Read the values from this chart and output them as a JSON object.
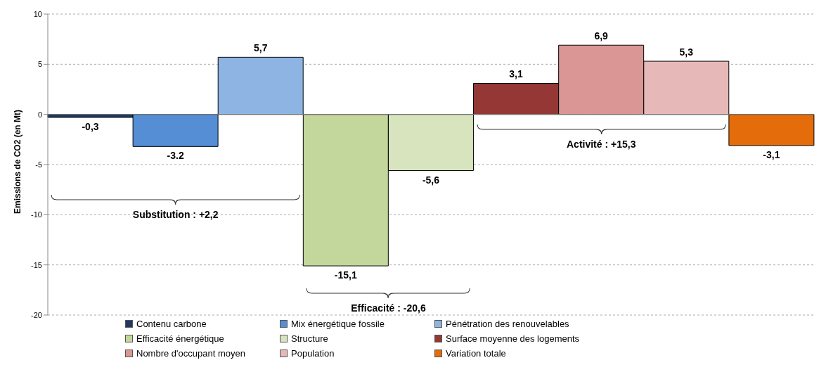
{
  "chart_data": {
    "type": "bar",
    "ylabel": "Emissions de CO2  (en Mt)",
    "categories": [
      null,
      null,
      null,
      null,
      null,
      null,
      null,
      null,
      null
    ],
    "series": [
      {
        "name": "Contenu carbone",
        "color": "#1f3864",
        "values": [
          -0.3,
          null,
          null,
          null,
          null,
          null,
          null,
          null,
          null
        ],
        "value_labels": [
          "-0,3",
          null,
          null,
          null,
          null,
          null,
          null,
          null,
          null
        ]
      },
      {
        "name": "Mix énergétique fossile",
        "color": "#558ed5",
        "values": [
          null,
          -3.2,
          null,
          null,
          null,
          null,
          null,
          null,
          null
        ],
        "value_labels": [
          null,
          "-3.2",
          null,
          null,
          null,
          null,
          null,
          null,
          null
        ]
      },
      {
        "name": "Pénétration des renouvelables",
        "color": "#8eb4e3",
        "values": [
          null,
          null,
          5.7,
          null,
          null,
          null,
          null,
          null,
          null
        ],
        "value_labels": [
          null,
          null,
          "5,7",
          null,
          null,
          null,
          null,
          null,
          null
        ]
      },
      {
        "name": "Efficacité énergétique",
        "color": "#c3d69b",
        "values": [
          null,
          null,
          null,
          -15.1,
          null,
          null,
          null,
          null,
          null
        ],
        "value_labels": [
          null,
          null,
          null,
          "-15,1",
          null,
          null,
          null,
          null,
          null
        ]
      },
      {
        "name": "Structure",
        "color": "#d7e4bd",
        "values": [
          null,
          null,
          null,
          null,
          -5.6,
          null,
          null,
          null,
          null
        ],
        "value_labels": [
          null,
          null,
          null,
          null,
          "-5,6",
          null,
          null,
          null,
          null
        ]
      },
      {
        "name": "Surface moyenne des logements",
        "color": "#953735",
        "values": [
          null,
          null,
          null,
          null,
          null,
          3.1,
          null,
          null,
          null
        ],
        "value_labels": [
          null,
          null,
          null,
          null,
          null,
          "3,1",
          null,
          null,
          null
        ]
      },
      {
        "name": "Nombre d'occupant moyen",
        "color": "#d99694",
        "values": [
          null,
          null,
          null,
          null,
          null,
          null,
          6.9,
          null,
          null
        ],
        "value_labels": [
          null,
          null,
          null,
          null,
          null,
          null,
          "6,9",
          null,
          null
        ]
      },
      {
        "name": "Population",
        "color": "#e6b9b8",
        "values": [
          null,
          null,
          null,
          null,
          null,
          null,
          null,
          5.3,
          null
        ],
        "value_labels": [
          null,
          null,
          null,
          null,
          null,
          null,
          null,
          "5,3",
          null
        ]
      },
      {
        "name": "Variation totale",
        "color": "#e46c0a",
        "values": [
          null,
          null,
          null,
          null,
          null,
          null,
          null,
          null,
          -3.1
        ],
        "value_labels": [
          null,
          null,
          null,
          null,
          null,
          null,
          null,
          null,
          "-3,1"
        ]
      }
    ],
    "annotations": [
      "Substitution : +2,2",
      "Efficacité : -20,6",
      "Activité : +15,3"
    ],
    "ylim": [
      -20,
      10
    ],
    "yticks": [
      -20,
      -15,
      -10,
      -5,
      0,
      5,
      10
    ],
    "grid": "y",
    "legend": "bottom"
  }
}
